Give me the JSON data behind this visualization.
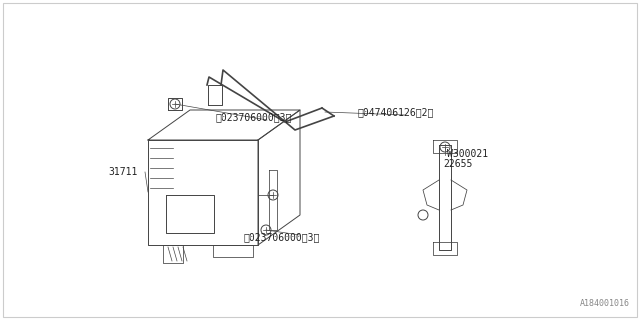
{
  "bg_color": "#ffffff",
  "border_color": "#cccccc",
  "line_color": "#444444",
  "text_color": "#222222",
  "fig_width": 6.4,
  "fig_height": 3.2,
  "dpi": 100,
  "watermark": "A184001016",
  "labels": {
    "part_31711": "31711",
    "nut_top": "ⓝ023706000（3）",
    "nut_bot": "ⓝ023706000（3）",
    "screw": "Ⓢ047406126（2）",
    "w300021": "W300021",
    "part_22655": "22655"
  }
}
